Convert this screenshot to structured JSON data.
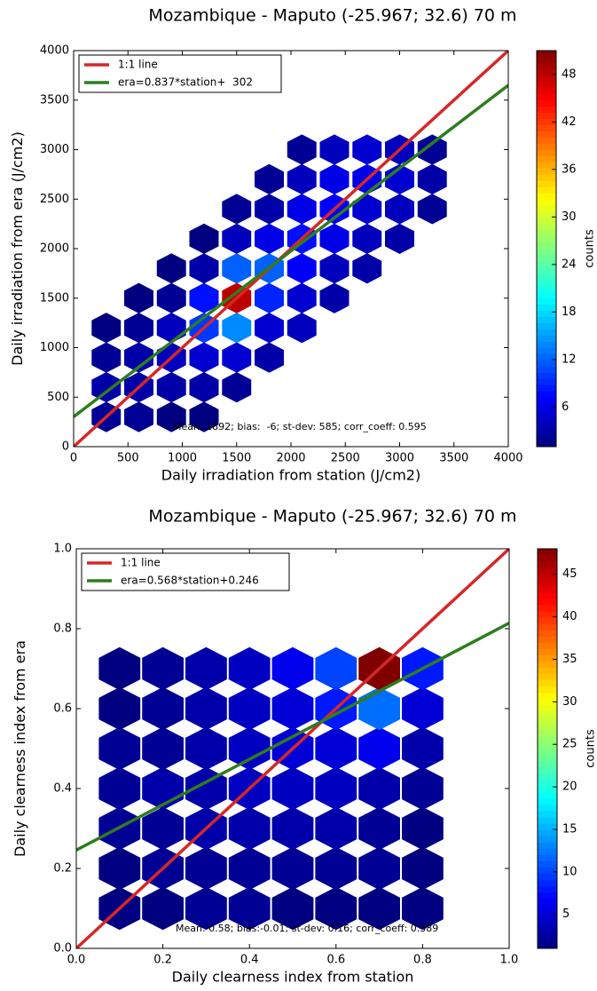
{
  "chart_data": [
    {
      "type": "hexbin",
      "title": "Mozambique - Maputo (-25.967; 32.6) 70 m",
      "x_label": "Daily irradiation from station (J/cm2)",
      "y_label": "Daily irradiation from era",
      "y_label_unit": "(J/cm2)",
      "annotation": "Mean: 1892; bias:  -6; st-dev: 585; corr_coeff: 0.595",
      "xlim": [
        0,
        4000
      ],
      "ylim": [
        0,
        4000
      ],
      "xticks": [
        0,
        500,
        1000,
        1500,
        2000,
        2500,
        3000,
        3500,
        4000
      ],
      "yticks": [
        0,
        500,
        1000,
        1500,
        2000,
        2500,
        3000,
        3500,
        4000
      ],
      "colormap": "jet",
      "colorbar_label": "counts",
      "clim": [
        1,
        51
      ],
      "cticks": [
        6,
        12,
        18,
        24,
        30,
        36,
        42,
        48
      ],
      "legend": "upper left",
      "hexbin": {
        "x": [
          300,
          300,
          300,
          300,
          600,
          600,
          600,
          600,
          600,
          900,
          900,
          900,
          900,
          900,
          900,
          1200,
          1200,
          1200,
          1200,
          1200,
          1200,
          1200,
          1500,
          1500,
          1500,
          1500,
          1500,
          1500,
          1500,
          1800,
          1800,
          1800,
          1800,
          1800,
          1800,
          1800,
          2100,
          2100,
          2100,
          2100,
          2100,
          2100,
          2100,
          2400,
          2400,
          2400,
          2400,
          2400,
          2400,
          2700,
          2700,
          2700,
          2700,
          2700,
          3000,
          3000,
          3000,
          3000,
          3300,
          3300,
          3300
        ],
        "y": [
          300,
          600,
          900,
          1200,
          300,
          600,
          900,
          1200,
          1500,
          300,
          600,
          900,
          1200,
          1500,
          1800,
          300,
          600,
          900,
          1200,
          1500,
          1800,
          2100,
          600,
          900,
          1200,
          1500,
          1800,
          2100,
          2400,
          900,
          1200,
          1500,
          1800,
          2100,
          2400,
          2700,
          1200,
          1500,
          1800,
          2100,
          2400,
          2700,
          3000,
          1500,
          1800,
          2100,
          2400,
          2700,
          3000,
          1800,
          2100,
          2400,
          2700,
          3000,
          2100,
          2400,
          2700,
          3000,
          2400,
          2700,
          3000
        ],
        "counts": [
          2,
          3,
          2,
          1,
          2,
          3,
          3,
          2,
          1,
          1,
          3,
          4,
          4,
          2,
          1,
          1,
          3,
          5,
          10,
          8,
          3,
          1,
          2,
          5,
          14,
          48,
          12,
          4,
          2,
          3,
          5,
          9,
          12,
          6,
          3,
          2,
          4,
          5,
          7,
          8,
          6,
          4,
          2,
          3,
          4,
          6,
          7,
          6,
          4,
          3,
          4,
          5,
          6,
          5,
          3,
          4,
          5,
          4,
          2,
          3,
          2
        ]
      },
      "series": [
        {
          "name": "1:1 line",
          "color": "#d62728",
          "x": [
            0,
            4000
          ],
          "values": [
            0,
            4000
          ]
        },
        {
          "name": "era=0.837*station+  302",
          "color": "#2e7d1e",
          "x": [
            0,
            4000
          ],
          "values": [
            302,
            3650
          ]
        }
      ]
    },
    {
      "type": "hexbin",
      "title": "Mozambique - Maputo (-25.967; 32.6) 70 m",
      "x_label": "Daily clearness index from station",
      "y_label": "Daily clearness index from era",
      "annotation": "Mean: 0.58; bias:-0.01; st-dev: 0.16; corr_coeff: 0.389",
      "xlim": [
        0,
        1
      ],
      "ylim": [
        0,
        1
      ],
      "xticks": [
        {
          "value": 0,
          "label": "0.0"
        },
        0.2,
        0.4,
        0.6,
        0.8,
        {
          "value": 1,
          "label": "1.0"
        }
      ],
      "yticks": [
        {
          "value": 0,
          "label": "0.0"
        },
        0.2,
        0.4,
        0.6,
        0.8,
        {
          "value": 1,
          "label": "1.0"
        }
      ],
      "colormap": "jet",
      "colorbar_label": "counts",
      "clim": [
        1,
        48
      ],
      "cticks": [
        5,
        10,
        15,
        20,
        25,
        30,
        35,
        40,
        45
      ],
      "legend": "upper left",
      "hexbin": {
        "x": [
          0.1,
          0.2,
          0.3,
          0.4,
          0.5,
          0.6,
          0.7,
          0.8,
          0.1,
          0.2,
          0.3,
          0.4,
          0.5,
          0.6,
          0.7,
          0.8,
          0.1,
          0.2,
          0.3,
          0.4,
          0.5,
          0.6,
          0.7,
          0.8,
          0.1,
          0.2,
          0.3,
          0.4,
          0.5,
          0.6,
          0.7,
          0.8,
          0.1,
          0.2,
          0.3,
          0.4,
          0.5,
          0.6,
          0.7,
          0.8,
          0.1,
          0.2,
          0.3,
          0.4,
          0.5,
          0.6,
          0.7,
          0.8,
          0.1,
          0.2,
          0.3,
          0.4,
          0.5,
          0.6,
          0.7,
          0.8
        ],
        "y": [
          0.1,
          0.1,
          0.1,
          0.1,
          0.1,
          0.1,
          0.1,
          0.1,
          0.2,
          0.2,
          0.2,
          0.2,
          0.2,
          0.2,
          0.2,
          0.2,
          0.3,
          0.3,
          0.3,
          0.3,
          0.3,
          0.3,
          0.3,
          0.3,
          0.4,
          0.4,
          0.4,
          0.4,
          0.4,
          0.4,
          0.4,
          0.4,
          0.5,
          0.5,
          0.5,
          0.5,
          0.5,
          0.5,
          0.5,
          0.5,
          0.6,
          0.6,
          0.6,
          0.6,
          0.6,
          0.6,
          0.6,
          0.6,
          0.7,
          0.7,
          0.7,
          0.7,
          0.7,
          0.7,
          0.7,
          0.7
        ],
        "counts": [
          1,
          1,
          2,
          2,
          1,
          1,
          1,
          1,
          1,
          2,
          2,
          2,
          2,
          2,
          2,
          1,
          2,
          2,
          3,
          3,
          3,
          3,
          2,
          1,
          2,
          3,
          3,
          4,
          4,
          4,
          3,
          2,
          2,
          2,
          3,
          4,
          5,
          5,
          6,
          3,
          1,
          2,
          3,
          4,
          5,
          8,
          12,
          5,
          1,
          2,
          3,
          4,
          6,
          10,
          48,
          8
        ]
      },
      "series": [
        {
          "name": "1:1 line",
          "color": "#d62728",
          "x": [
            0,
            1
          ],
          "values": [
            0,
            1
          ]
        },
        {
          "name": "era=0.568*station+0.246",
          "color": "#2e7d1e",
          "x": [
            0,
            1
          ],
          "values": [
            0.246,
            0.814
          ]
        }
      ]
    }
  ]
}
